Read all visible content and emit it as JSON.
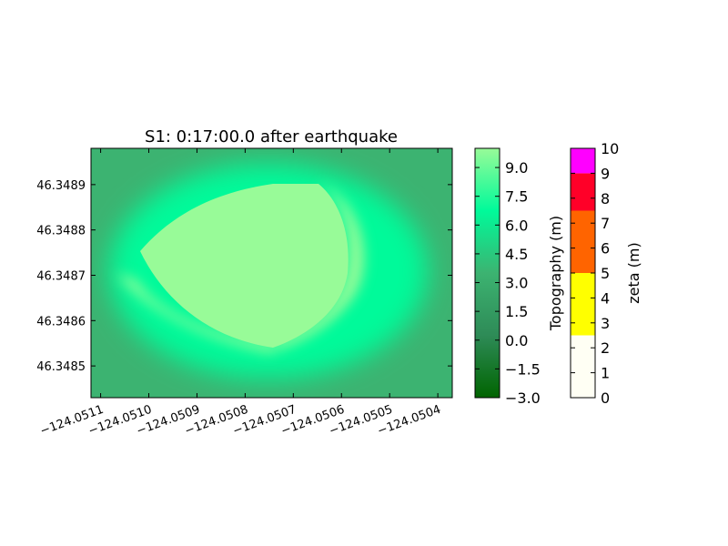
{
  "chart_data": {
    "type": "heatmap",
    "title": "S1: 0:17:00.0 after earthquake",
    "xlim": [
      -124.05112,
      -124.05037
    ],
    "ylim": [
      46.34843,
      46.34898
    ],
    "x_ticks": [
      -124.0511,
      -124.051,
      -124.0509,
      -124.0508,
      -124.0507,
      -124.0506,
      -124.0505,
      -124.0504
    ],
    "x_tick_labels": [
      "−124.0511",
      "−124.0510",
      "−124.0509",
      "−124.0508",
      "−124.0507",
      "−124.0506",
      "−124.0505",
      "−124.0504"
    ],
    "y_ticks": [
      46.3485,
      46.3486,
      46.3487,
      46.3488,
      46.3489
    ],
    "y_tick_labels": [
      "46.3485",
      "46.3486",
      "46.3487",
      "46.3488",
      "46.3489"
    ],
    "field_description": "topography: raised mound approx 9-10 m surrounded by slopes ~3-4 m and flat ground ~2 m; zeta not shown (dry)",
    "colorbars": [
      {
        "label": "Topography (m)",
        "range": [
          -3.0,
          10.0
        ],
        "ticks": [
          -3.0,
          -1.5,
          0.0,
          1.5,
          3.0,
          4.5,
          6.0,
          7.5,
          9.0
        ],
        "tick_labels": [
          "−3.0",
          "−1.5",
          "0.0",
          "1.5",
          "3.0",
          "4.5",
          "6.0",
          "7.5",
          "9.0"
        ],
        "colors": [
          "#006400",
          "#2e8b57",
          "#3cb371",
          "#00fa9a",
          "#98fb98"
        ]
      },
      {
        "label": "zeta (m)",
        "range": [
          0,
          10
        ],
        "ticks": [
          0,
          1,
          2,
          3,
          4,
          5,
          6,
          7,
          8,
          9,
          10
        ],
        "tick_labels": [
          "0",
          "1",
          "2",
          "3",
          "4",
          "5",
          "6",
          "7",
          "8",
          "9",
          "10"
        ],
        "segments": [
          {
            "from": 0,
            "to": 2.5,
            "color": "#fffff4"
          },
          {
            "from": 2.5,
            "to": 5,
            "color": "#ffff00"
          },
          {
            "from": 5,
            "to": 7.5,
            "color": "#ff6400"
          },
          {
            "from": 7.5,
            "to": 9,
            "color": "#ff0028"
          },
          {
            "from": 9,
            "to": 10,
            "color": "#ff00ff"
          }
        ]
      }
    ],
    "colors": {
      "ground": "#3cb371",
      "slope": "#00fa9a",
      "mound": "#98fb98"
    }
  }
}
